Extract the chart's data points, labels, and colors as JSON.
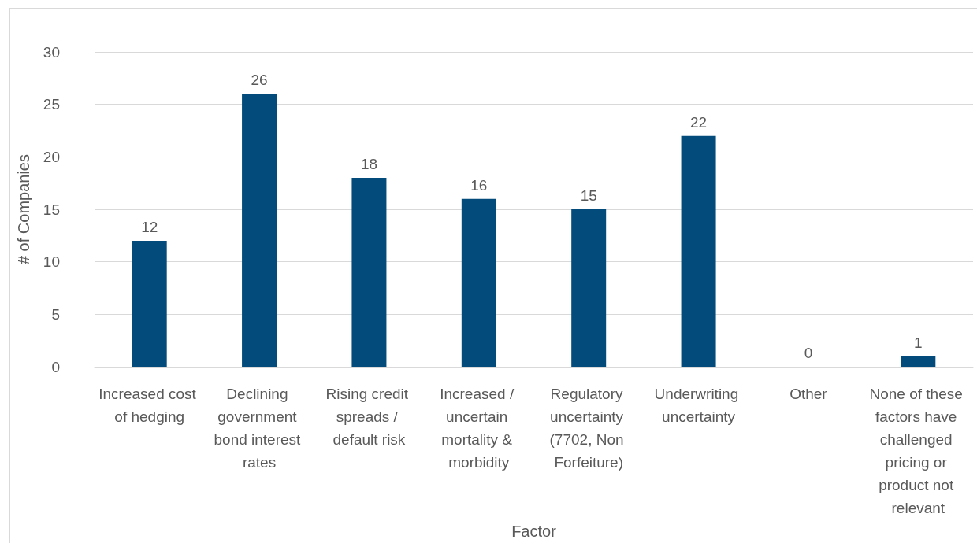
{
  "chart_data": {
    "type": "bar",
    "categories": [
      "Increased cost of hedging",
      "Declining government bond interest rates",
      "Rising credit spreads / default risk",
      "Increased / uncertain mortality & morbidity",
      "Regulatory uncertainty (7702, Non Forfeiture)",
      "Underwriting uncertainty",
      "Other",
      "None of these factors have challenged pricing or product not relevant"
    ],
    "values": [
      12,
      26,
      18,
      16,
      15,
      22,
      0,
      1
    ],
    "color": "#034b7a",
    "data_labels": true,
    "xlabel": "Factor",
    "ylabel": "# of Companies",
    "ylim": [
      0,
      30
    ],
    "yticks": [
      0,
      5,
      10,
      15,
      20,
      25,
      30
    ],
    "grid": "y"
  }
}
